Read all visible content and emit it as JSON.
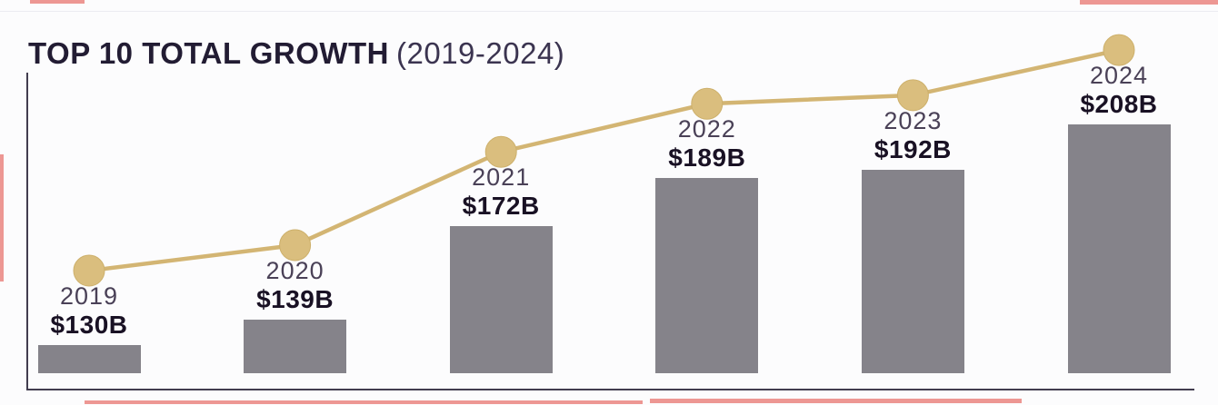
{
  "title": {
    "main": "TOP 10 TOTAL GROWTH",
    "range": "(2019-2024)"
  },
  "colors": {
    "background": "#f7f7f9",
    "surface": "#fcfcfd",
    "title": "#221c33",
    "subtitle": "#3b3450",
    "axis": "#423d4f",
    "bar": "#85838a",
    "line": "#d3b573",
    "marker_fill": "#dabe7e",
    "marker_edge": "#cdb06b",
    "year_label": "#4a4157",
    "value_label": "#191124",
    "red_mark": "#e0443c"
  },
  "chart_data": {
    "type": "bar",
    "title": "TOP 10 TOTAL GROWTH",
    "subtitle": "(2019-2024)",
    "categories": [
      "2019",
      "2020",
      "2021",
      "2022",
      "2023",
      "2024"
    ],
    "series": [
      {
        "name": "total-value-bars",
        "type": "bar",
        "values": [
          130,
          139,
          172,
          189,
          192,
          208
        ]
      },
      {
        "name": "total-value-trend",
        "type": "line",
        "values": [
          130,
          139,
          172,
          189,
          192,
          208
        ]
      }
    ],
    "value_labels": [
      "$130B",
      "$139B",
      "$172B",
      "$189B",
      "$192B",
      "$208B"
    ],
    "unit": "USD billions",
    "xlabel": "",
    "ylabel": "",
    "grid": false,
    "legend": "none",
    "axis_lines": [
      "left",
      "bottom"
    ]
  }
}
